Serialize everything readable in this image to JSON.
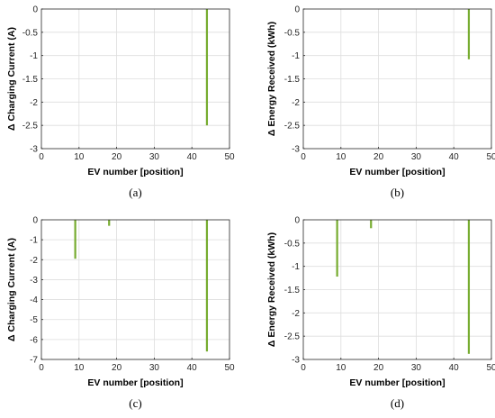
{
  "colors": {
    "bar": "#77ac30",
    "grid": "#dedede",
    "axis": "#262626"
  },
  "chart_data": [
    {
      "type": "bar",
      "panel_label": "(a)",
      "xlabel": "EV number [position]",
      "ylabel": "Δ Charging Current (A)",
      "xlim": [
        0,
        50
      ],
      "ylim": [
        -3,
        0
      ],
      "xticks": [
        0,
        10,
        20,
        30,
        40,
        50
      ],
      "yticks": [
        0,
        -0.5,
        -1,
        -1.5,
        -2,
        -2.5,
        -3
      ],
      "ytick_labels": [
        "0",
        "-0.5",
        "-1",
        "-1.5",
        "-2",
        "-2.5",
        "-3"
      ],
      "grid": true,
      "x": [
        44
      ],
      "values": [
        -2.5
      ]
    },
    {
      "type": "bar",
      "panel_label": "(b)",
      "xlabel": "EV number [position]",
      "ylabel": "Δ Energy Received (kWh)",
      "xlim": [
        0,
        50
      ],
      "ylim": [
        -3,
        0
      ],
      "xticks": [
        0,
        10,
        20,
        30,
        40,
        50
      ],
      "yticks": [
        0,
        -0.5,
        -1,
        -1.5,
        -2,
        -2.5,
        -3
      ],
      "ytick_labels": [
        "0",
        "-0.5",
        "-1",
        "-1.5",
        "-2",
        "-2.5",
        "-3"
      ],
      "grid": true,
      "x": [
        44
      ],
      "values": [
        -1.08
      ]
    },
    {
      "type": "bar",
      "panel_label": "(c)",
      "xlabel": "EV number [position]",
      "ylabel": "Δ Charging Current (A)",
      "xlim": [
        0,
        50
      ],
      "ylim": [
        -7,
        0
      ],
      "xticks": [
        0,
        10,
        20,
        30,
        40,
        50
      ],
      "yticks": [
        0,
        -1,
        -2,
        -3,
        -4,
        -5,
        -6,
        -7
      ],
      "ytick_labels": [
        "0",
        "-1",
        "-2",
        "-3",
        "-4",
        "-5",
        "-6",
        "-7"
      ],
      "grid": true,
      "x": [
        9,
        18,
        44
      ],
      "values": [
        -1.95,
        -0.3,
        -6.6
      ]
    },
    {
      "type": "bar",
      "panel_label": "(d)",
      "xlabel": "EV number [position]",
      "ylabel": "Δ Energy Received (kWh)",
      "xlim": [
        0,
        50
      ],
      "ylim": [
        -3,
        0
      ],
      "xticks": [
        0,
        10,
        20,
        30,
        40,
        50
      ],
      "yticks": [
        0,
        -0.5,
        -1,
        -1.5,
        -2,
        -2.5,
        -3
      ],
      "ytick_labels": [
        "0",
        "-0.5",
        "-1",
        "-1.5",
        "-2",
        "-2.5",
        "-3"
      ],
      "grid": true,
      "x": [
        9,
        18,
        44
      ],
      "values": [
        -1.22,
        -0.18,
        -2.88
      ]
    }
  ]
}
